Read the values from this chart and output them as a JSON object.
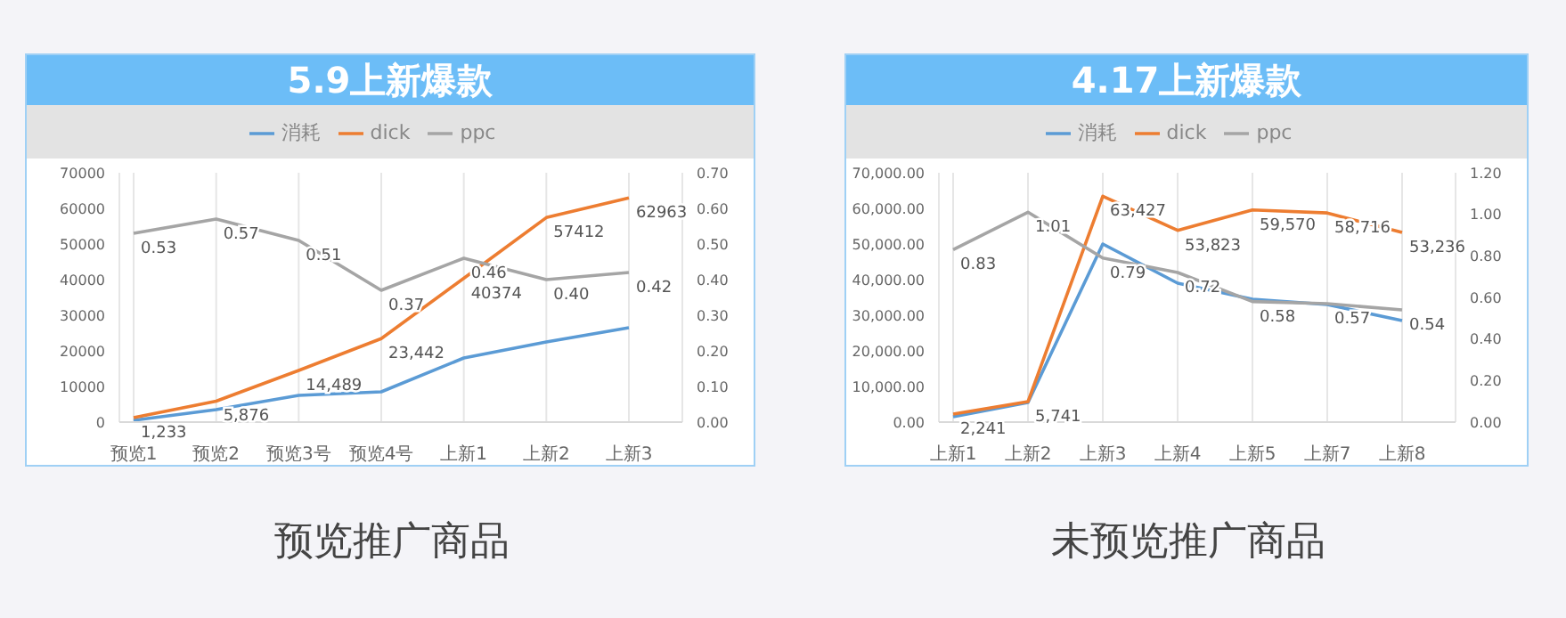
{
  "chart_data": [
    {
      "type": "line",
      "title": "5.9上新爆款",
      "categories": [
        "预览1",
        "预览2",
        "预览3号",
        "预览4号",
        "上新1",
        "上新2",
        "上新3"
      ],
      "series": [
        {
          "name": "消耗",
          "color": "#5b9bd5",
          "values": [
            500,
            3500,
            7500,
            8500,
            18000,
            22500,
            26500
          ]
        },
        {
          "name": "dick",
          "color": "#ed7d31",
          "values": [
            1233,
            5876,
            14489,
            23442,
            40374,
            57412,
            62963
          ],
          "value_labels": [
            "1,233",
            "5,876",
            "14,489",
            "23,442",
            "40374",
            "57412",
            "62963"
          ]
        },
        {
          "name": "ppc",
          "color": "#a5a5a5",
          "axis": "y2",
          "values": [
            0.53,
            0.57,
            0.51,
            0.37,
            0.46,
            0.4,
            0.42
          ],
          "value_labels": [
            "0.53",
            "0.57",
            "0.51",
            "0.37",
            "0.46",
            "0.40",
            "0.42"
          ]
        }
      ],
      "ylim": [
        0,
        70000
      ],
      "yticks": [
        0,
        10000,
        20000,
        30000,
        40000,
        50000,
        60000,
        70000
      ],
      "y2lim": [
        0,
        0.7
      ],
      "y2ticks": [
        {
          "value": 0,
          "label": "0.00"
        },
        {
          "value": 0.1,
          "label": "0.10"
        },
        {
          "value": 0.2,
          "label": "0.20"
        },
        {
          "value": 0.3,
          "label": "0.30"
        },
        {
          "value": 0.4,
          "label": "0.40"
        },
        {
          "value": 0.5,
          "label": "0.50"
        },
        {
          "value": 0.6,
          "label": "0.60"
        },
        {
          "value": 0.7,
          "label": "0.70"
        }
      ],
      "grid": "x",
      "legend": "top",
      "marker": "none",
      "line_style": "solid",
      "annotations": [
        "预览推广商品"
      ]
    },
    {
      "type": "line",
      "title": "4.17上新爆款",
      "categories": [
        "上新1",
        "上新2",
        "上新3",
        "上新4",
        "上新5",
        "上新7",
        "上新8"
      ],
      "series": [
        {
          "name": "消耗",
          "color": "#5b9bd5",
          "values": [
            1500,
            5500,
            50000,
            39000,
            34500,
            33000,
            28500
          ]
        },
        {
          "name": "dick",
          "color": "#ed7d31",
          "values": [
            2241,
            5741,
            63427,
            53823,
            59570,
            58716,
            53236
          ],
          "value_labels": [
            "2,241",
            "5,741",
            "63,427",
            "53,823",
            "59,570",
            "58,716",
            "53,236"
          ]
        },
        {
          "name": "ppc",
          "color": "#a5a5a5",
          "axis": "y2",
          "values": [
            0.83,
            1.01,
            0.79,
            0.72,
            0.58,
            0.57,
            0.54
          ],
          "value_labels": [
            "0.83",
            "1.01",
            "0.79",
            "0.72",
            "0.58",
            "0.57",
            "0.54"
          ]
        }
      ],
      "ylim": [
        0,
        70000
      ],
      "yticks": [
        {
          "value": 0,
          "label": "0.00"
        },
        {
          "value": 10000,
          "label": "10,000.00"
        },
        {
          "value": 20000,
          "label": "20,000.00"
        },
        {
          "value": 30000,
          "label": "30,000.00"
        },
        {
          "value": 40000,
          "label": "40,000.00"
        },
        {
          "value": 50000,
          "label": "50,000.00"
        },
        {
          "value": 60000,
          "label": "60,000.00"
        },
        {
          "value": 70000,
          "label": "70,000.00"
        }
      ],
      "y2lim": [
        0,
        1.2
      ],
      "y2ticks": [
        {
          "value": 0,
          "label": "0.00"
        },
        {
          "value": 0.2,
          "label": "0.20"
        },
        {
          "value": 0.4,
          "label": "0.40"
        },
        {
          "value": 0.6,
          "label": "0.60"
        },
        {
          "value": 0.8,
          "label": "0.80"
        },
        {
          "value": 1.0,
          "label": "1.00"
        },
        {
          "value": 1.2,
          "label": "1.20"
        }
      ],
      "grid": "x",
      "legend": "top",
      "marker": "none",
      "line_style": "solid",
      "annotations": [
        "未预览推广商品"
      ]
    }
  ]
}
